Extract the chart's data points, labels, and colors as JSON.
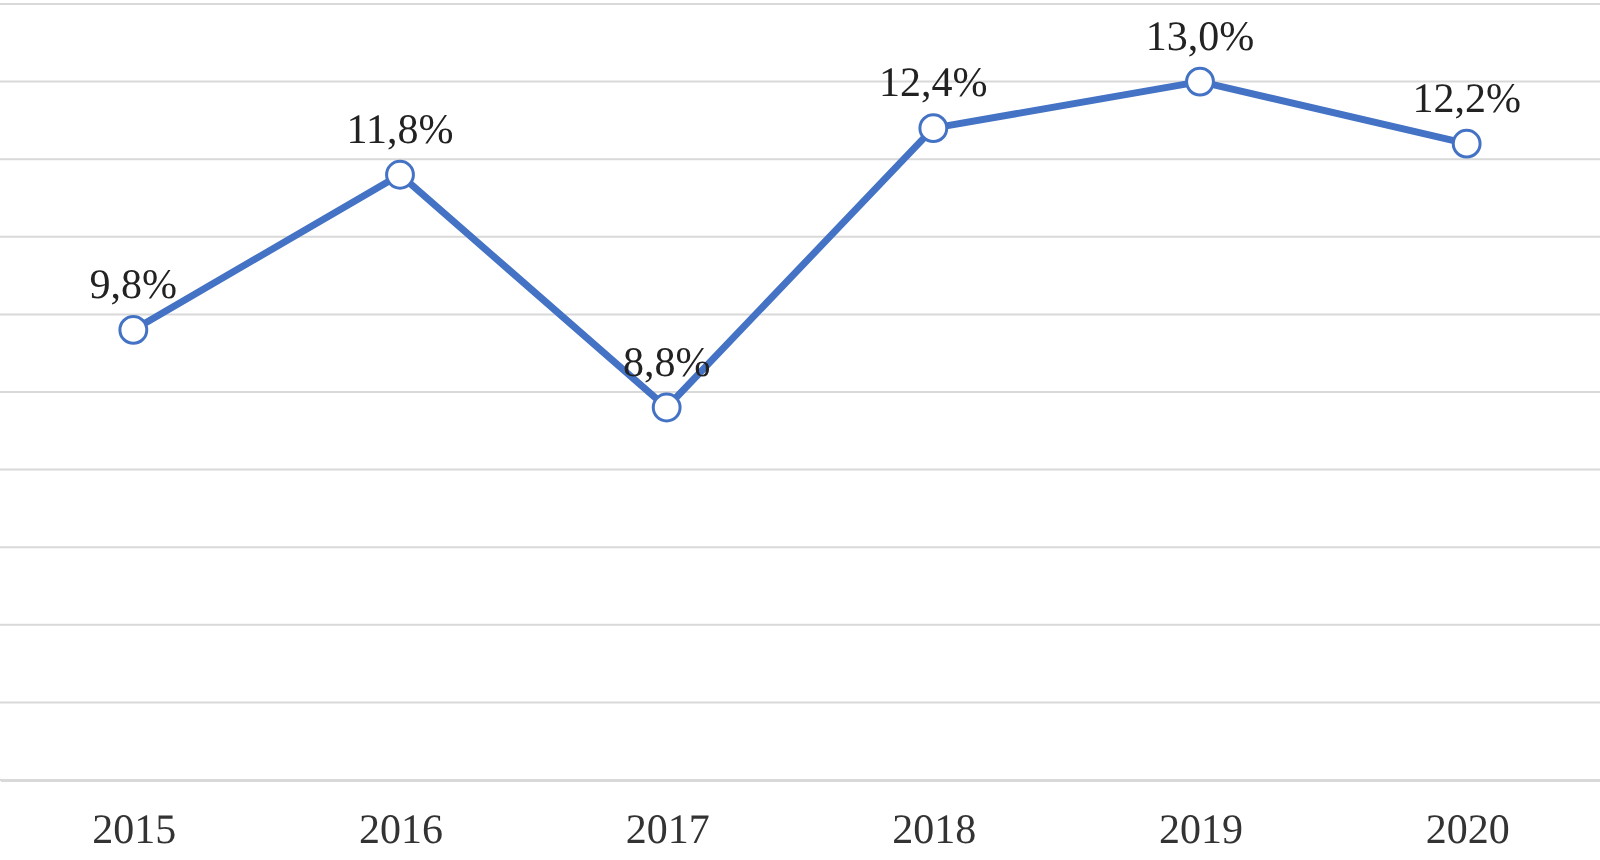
{
  "chart_data": {
    "type": "line",
    "categories": [
      "2015",
      "2016",
      "2017",
      "2018",
      "2019",
      "2020"
    ],
    "series": [
      {
        "color": "#4472c4",
        "values": [
          9.8,
          11.8,
          8.8,
          12.4,
          13.0,
          12.2
        ],
        "value_labels": [
          "9,8%",
          "11,8%",
          "8,8%",
          "12,4%",
          "13,0%",
          "12,2%"
        ]
      }
    ],
    "ylim": [
      4,
      14
    ],
    "yticks": [
      4,
      5,
      6,
      7,
      8,
      9,
      10,
      11,
      12,
      13,
      14
    ],
    "grid": "y",
    "tick_labels": "x",
    "marker": "circle",
    "line_style": "solid"
  }
}
